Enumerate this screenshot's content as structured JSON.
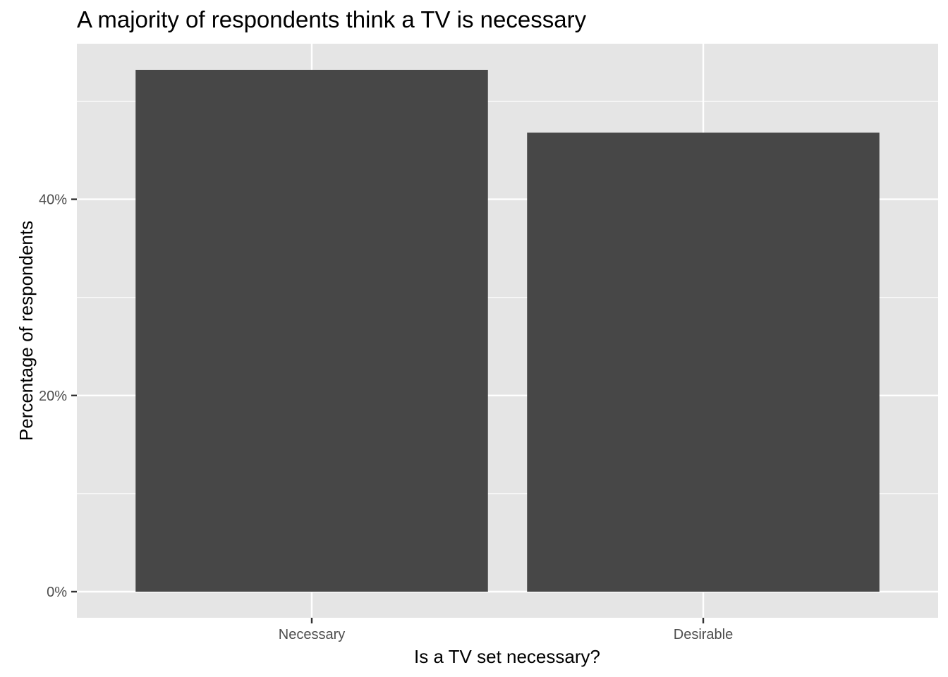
{
  "chart_data": {
    "type": "bar",
    "title": "A majority of respondents think a TV is necessary",
    "xlabel": "Is a TV set necessary?",
    "ylabel": "Percentage of respondents",
    "categories": [
      "Necessary",
      "Desirable"
    ],
    "values": [
      53.2,
      46.8
    ],
    "value_unit": "%",
    "ylim": [
      -2.66,
      55.86
    ],
    "yticks": [
      0,
      20,
      40
    ],
    "ytick_labels": [
      "0%",
      "20%",
      "40%"
    ],
    "grid": true,
    "legend": "none",
    "colors": {
      "bar": "#474747",
      "panel": "#e5e5e5",
      "grid": "#ffffff",
      "tick_text": "#4d4d4d"
    }
  }
}
